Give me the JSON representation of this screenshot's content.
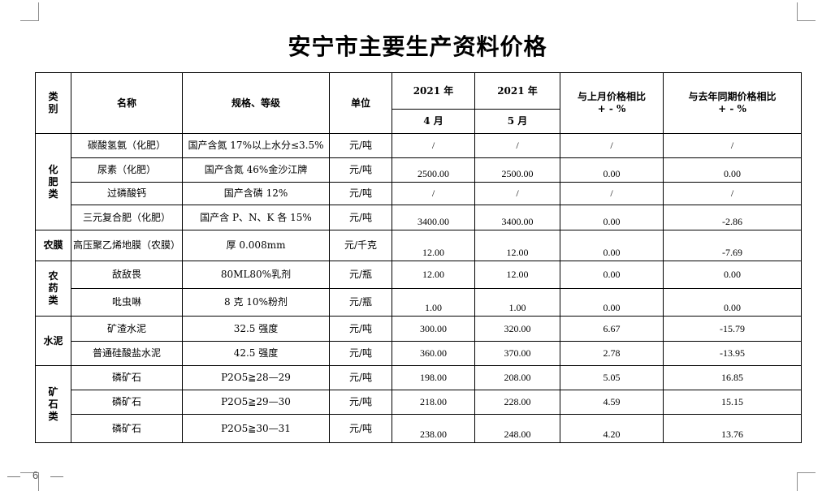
{
  "title": "安宁市主要生产资料价格",
  "page_number": "6",
  "header": {
    "category": "类别",
    "name": "名称",
    "spec": "规格、等级",
    "unit": "单位",
    "year_a": "2021 年",
    "year_b": "2021 年",
    "month_a": "4 月",
    "month_b": "5 月",
    "mom_line1": "与上月价格相比",
    "mom_line2": "+ - %",
    "yoy_line1": "与去年同期价格相比",
    "yoy_line2": "+ - %"
  },
  "categories": [
    "化肥类",
    "农膜",
    "农药类",
    "水泥",
    "矿石类"
  ],
  "rows": [
    {
      "name": "碳酸氢氨（化肥）",
      "spec": "国产含氮 17%以上水分≤3.5%",
      "unit": "元/吨",
      "apr": "/",
      "may": "/",
      "mom": "/",
      "yoy": "/"
    },
    {
      "name": "尿素（化肥）",
      "spec": "国产含氮 46%金沙江牌",
      "unit": "元/吨",
      "apr": "2500.00",
      "may": "2500.00",
      "mom": "0.00",
      "yoy": "0.00"
    },
    {
      "name": "过磷酸钙",
      "spec": "国产含磷 12%",
      "unit": "元/吨",
      "apr": "/",
      "may": "/",
      "mom": "/",
      "yoy": "/"
    },
    {
      "name": "三元复合肥（化肥）",
      "spec": "国产含 P、N、K 各 15%",
      "unit": "元/吨",
      "apr": "3400.00",
      "may": "3400.00",
      "mom": "0.00",
      "yoy": "-2.86"
    },
    {
      "name": "高压聚乙烯地膜（农膜）",
      "spec": "厚 0.008mm",
      "unit": "元/千克",
      "apr": "12.00",
      "may": "12.00",
      "mom": "0.00",
      "yoy": "-7.69"
    },
    {
      "name": "敌敌畏",
      "spec": "80ML80%乳剂",
      "unit": "元/瓶",
      "apr": "12.00",
      "may": "12.00",
      "mom": "0.00",
      "yoy": "0.00"
    },
    {
      "name": "吡虫啉",
      "spec": "8 克 10%粉剂",
      "unit": "元/瓶",
      "apr": "1.00",
      "may": "1.00",
      "mom": "0.00",
      "yoy": "0.00"
    },
    {
      "name": "矿渣水泥",
      "spec": "32.5 强度",
      "unit": "元/吨",
      "apr": "300.00",
      "may": "320.00",
      "mom": "6.67",
      "yoy": "-15.79"
    },
    {
      "name": "普通硅酸盐水泥",
      "spec": "42.5 强度",
      "unit": "元/吨",
      "apr": "360.00",
      "may": "370.00",
      "mom": "2.78",
      "yoy": "-13.95"
    },
    {
      "name": "磷矿石",
      "spec": "P2O5≧28—29",
      "unit": "元/吨",
      "apr": "198.00",
      "may": "208.00",
      "mom": "5.05",
      "yoy": "16.85"
    },
    {
      "name": "磷矿石",
      "spec": "P2O5≧29—30",
      "unit": "元/吨",
      "apr": "218.00",
      "may": "228.00",
      "mom": "4.59",
      "yoy": "15.15"
    },
    {
      "name": "磷矿石",
      "spec": "P2O5≧30—31",
      "unit": "元/吨",
      "apr": "238.00",
      "may": "248.00",
      "mom": "4.20",
      "yoy": "13.76"
    }
  ]
}
